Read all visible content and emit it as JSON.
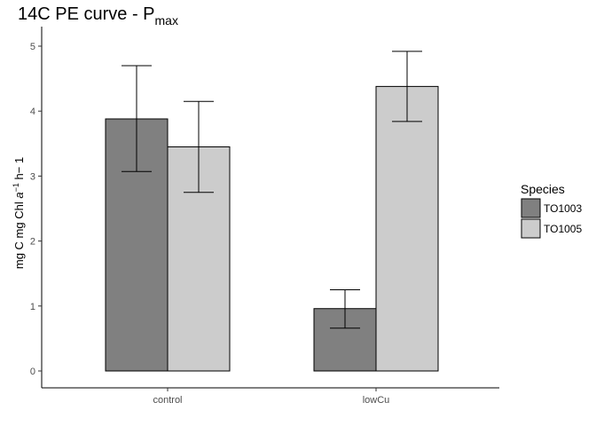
{
  "chart_data": {
    "type": "bar",
    "title": {
      "main": "14C PE curve -  P",
      "subscript": "max"
    },
    "xlabel": "",
    "ylabel": {
      "prefix": "mg C mg Chl ",
      "italic": "a",
      "superscript": "−1",
      "suffix": " h− 1"
    },
    "categories": [
      "control",
      "lowCu"
    ],
    "ylim": [
      0,
      5
    ],
    "yticks": [
      0,
      1,
      2,
      3,
      4,
      5
    ],
    "grid": false,
    "legend": {
      "title": "Species",
      "placement": "right"
    },
    "series": [
      {
        "name": "TO1003",
        "color": "#808080",
        "values": [
          3.88,
          0.96
        ],
        "err_low": [
          3.07,
          0.66
        ],
        "err_high": [
          4.7,
          1.25
        ]
      },
      {
        "name": "TO1005",
        "color": "#cccccc",
        "values": [
          3.45,
          4.38
        ],
        "err_low": [
          2.75,
          3.84
        ],
        "err_high": [
          4.15,
          4.92
        ]
      }
    ]
  }
}
